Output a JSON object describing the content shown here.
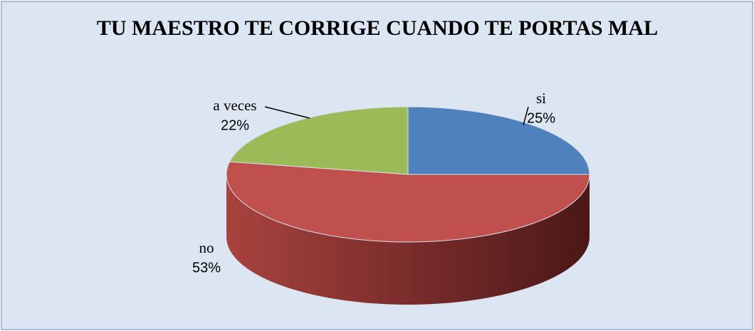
{
  "chart_data": {
    "type": "pie",
    "title": "TU MAESTRO TE CORRIGE CUANDO TE PORTAS MAL",
    "categories": [
      "si",
      "no",
      "a veces"
    ],
    "values": [
      25,
      53,
      22
    ],
    "value_labels": [
      "25%",
      "53%",
      "22%"
    ],
    "colors": [
      "#4f81bd",
      "#c0504d",
      "#9bbb59"
    ]
  }
}
